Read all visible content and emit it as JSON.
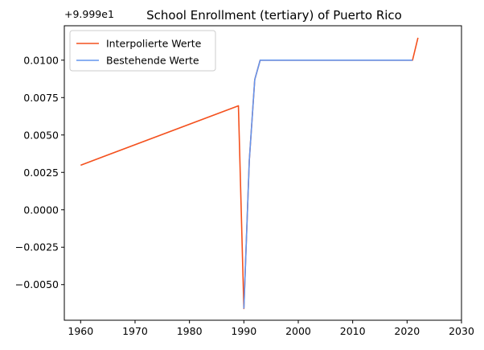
{
  "chart_data": {
    "type": "line",
    "title": "School Enrollment (tertiary) of Puerto Rico",
    "xlabel": "",
    "ylabel": "",
    "y_offset_label": "+9.999e1",
    "xlim": [
      1957,
      2030
    ],
    "ylim": [
      -0.00738,
      0.0123
    ],
    "x_ticks": [
      1960,
      1970,
      1980,
      1990,
      2000,
      2010,
      2020,
      2030
    ],
    "x_tick_labels": [
      "1960",
      "1970",
      "1980",
      "1990",
      "2000",
      "2010",
      "2020",
      "2030"
    ],
    "y_ticks": [
      -0.005,
      -0.0025,
      0.0,
      0.0025,
      0.005,
      0.0075,
      0.01
    ],
    "y_tick_labels": [
      "−0.0050",
      "−0.0025",
      "0.0000",
      "0.0025",
      "0.0050",
      "0.0075",
      "0.0100"
    ],
    "grid": false,
    "legend_position": "top-left",
    "series": [
      {
        "name": "Interpolierte Werte",
        "color": "#f4511e",
        "x": [
          1960,
          1989,
          1990,
          1991,
          1992,
          1993,
          2021,
          2022
        ],
        "y": [
          0.00298,
          0.00695,
          -0.0066,
          0.0033,
          0.0087,
          0.01,
          0.01,
          0.0115
        ]
      },
      {
        "name": "Bestehende Werte",
        "color": "#6495ed",
        "x": [
          1990,
          1991,
          1992,
          1993,
          2021
        ],
        "y": [
          -0.0066,
          0.0033,
          0.0087,
          0.01,
          0.01
        ]
      }
    ]
  }
}
